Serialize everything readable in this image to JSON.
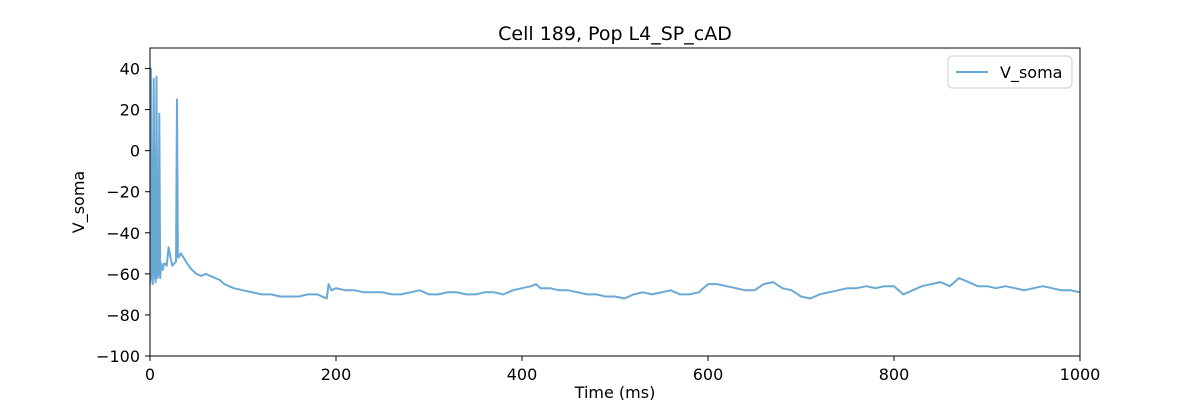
{
  "chart_data": {
    "type": "line",
    "title": "Cell 189, Pop L4_SP_cAD",
    "xlabel": "Time (ms)",
    "ylabel": "V_soma",
    "xlim": [
      0,
      1000
    ],
    "ylim": [
      -100,
      50
    ],
    "xticks": [
      0,
      200,
      400,
      600,
      800,
      1000
    ],
    "xtick_labels": [
      "0",
      "200",
      "400",
      "600",
      "800",
      "1000"
    ],
    "yticks": [
      -100,
      -80,
      -60,
      -40,
      -20,
      0,
      20,
      40
    ],
    "ytick_labels": [
      "−100",
      "−80",
      "−60",
      "−40",
      "−20",
      "0",
      "20",
      "40"
    ],
    "grid": false,
    "legend_position": "top-right",
    "series": [
      {
        "name": "V_soma",
        "color": "#6aa9d6",
        "x": [
          0,
          1,
          2,
          3,
          4,
          5,
          6,
          7,
          8,
          9,
          10,
          11,
          12,
          13,
          14,
          15,
          16,
          18,
          20,
          22,
          24,
          26,
          28,
          29,
          30,
          31,
          33,
          36,
          40,
          45,
          50,
          55,
          60,
          65,
          70,
          75,
          80,
          90,
          100,
          110,
          120,
          130,
          140,
          150,
          160,
          170,
          180,
          190,
          192,
          195,
          200,
          210,
          220,
          230,
          240,
          250,
          260,
          270,
          280,
          290,
          300,
          310,
          320,
          330,
          340,
          350,
          360,
          370,
          380,
          390,
          400,
          410,
          415,
          420,
          430,
          440,
          450,
          460,
          470,
          480,
          490,
          500,
          510,
          520,
          530,
          540,
          550,
          560,
          570,
          580,
          590,
          600,
          610,
          620,
          630,
          640,
          650,
          660,
          670,
          680,
          690,
          700,
          710,
          720,
          730,
          740,
          750,
          760,
          770,
          780,
          790,
          800,
          810,
          820,
          830,
          840,
          850,
          860,
          870,
          880,
          890,
          900,
          910,
          920,
          930,
          940,
          950,
          960,
          970,
          980,
          990,
          1000
        ],
        "y": [
          -65,
          40,
          -62,
          -65,
          35,
          -60,
          -64,
          36,
          -62,
          -60,
          18,
          -62,
          -55,
          -57,
          -58,
          -55,
          -55,
          -56,
          -47,
          -52,
          -56,
          -55,
          -54,
          25,
          -52,
          -52,
          -50,
          -52,
          -55,
          -58,
          -60,
          -61,
          -60,
          -61,
          -62,
          -63,
          -65,
          -67,
          -68,
          -69,
          -70,
          -70,
          -71,
          -71,
          -71,
          -70,
          -70,
          -72,
          -65,
          -68,
          -67,
          -68,
          -68,
          -69,
          -69,
          -69,
          -70,
          -70,
          -69,
          -68,
          -70,
          -70,
          -69,
          -69,
          -70,
          -70,
          -69,
          -69,
          -70,
          -68,
          -67,
          -66,
          -65,
          -67,
          -67,
          -68,
          -68,
          -69,
          -70,
          -70,
          -71,
          -71,
          -72,
          -70,
          -69,
          -70,
          -69,
          -68,
          -70,
          -70,
          -69,
          -65,
          -65,
          -66,
          -67,
          -68,
          -68,
          -65,
          -64,
          -67,
          -68,
          -71,
          -72,
          -70,
          -69,
          -68,
          -67,
          -67,
          -66,
          -67,
          -66,
          -66,
          -70,
          -68,
          -66,
          -65,
          -64,
          -66,
          -62,
          -64,
          -66,
          -66,
          -67,
          -66,
          -67,
          -68,
          -67,
          -66,
          -67,
          -68,
          -68,
          -69
        ]
      }
    ]
  }
}
